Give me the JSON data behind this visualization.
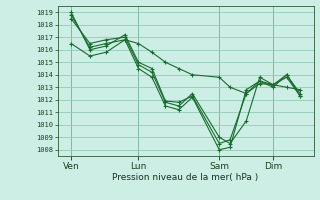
{
  "xlabel": "Pression niveau de la mer( hPa )",
  "bg_color": "#cceee4",
  "grid_color": "#99ccbb",
  "line_color": "#1a6b30",
  "ylim": [
    1007.5,
    1019.5
  ],
  "yticks": [
    1008,
    1009,
    1010,
    1011,
    1012,
    1013,
    1014,
    1015,
    1016,
    1017,
    1018,
    1019
  ],
  "xtick_labels": [
    "Ven",
    "Lun",
    "Sam",
    "Dim"
  ],
  "xtick_positions": [
    0.5,
    3.0,
    6.0,
    8.0
  ],
  "series": [
    [
      1018.8,
      1016.2,
      1016.5,
      1016.8,
      1014.5,
      1013.8,
      1011.5,
      1011.2,
      1012.2,
      1008.0,
      1008.2,
      1012.8,
      1013.5,
      1013.2,
      1014.0,
      1012.3
    ],
    [
      1018.5,
      1016.5,
      1016.8,
      1017.0,
      1014.8,
      1014.2,
      1011.8,
      1011.5,
      1012.5,
      1009.0,
      1008.5,
      1010.3,
      1013.8,
      1013.2,
      1013.8,
      1012.3
    ],
    [
      1019.0,
      1016.0,
      1016.3,
      1017.2,
      1015.0,
      1014.5,
      1011.9,
      1011.8,
      1012.3,
      1008.5,
      1008.8,
      1012.5,
      1013.5,
      1013.0,
      1014.0,
      1012.5
    ],
    [
      1016.5,
      1015.5,
      1015.8,
      1016.8,
      1016.5,
      1015.8,
      1015.0,
      1014.5,
      1014.0,
      1013.8,
      1013.0,
      1012.5,
      1013.3,
      1013.2,
      1013.0,
      1012.8
    ]
  ],
  "x_positions": [
    0.5,
    1.2,
    1.8,
    2.5,
    3.0,
    3.5,
    4.0,
    4.5,
    5.0,
    6.0,
    6.4,
    7.0,
    7.5,
    8.0,
    8.5,
    9.0
  ]
}
